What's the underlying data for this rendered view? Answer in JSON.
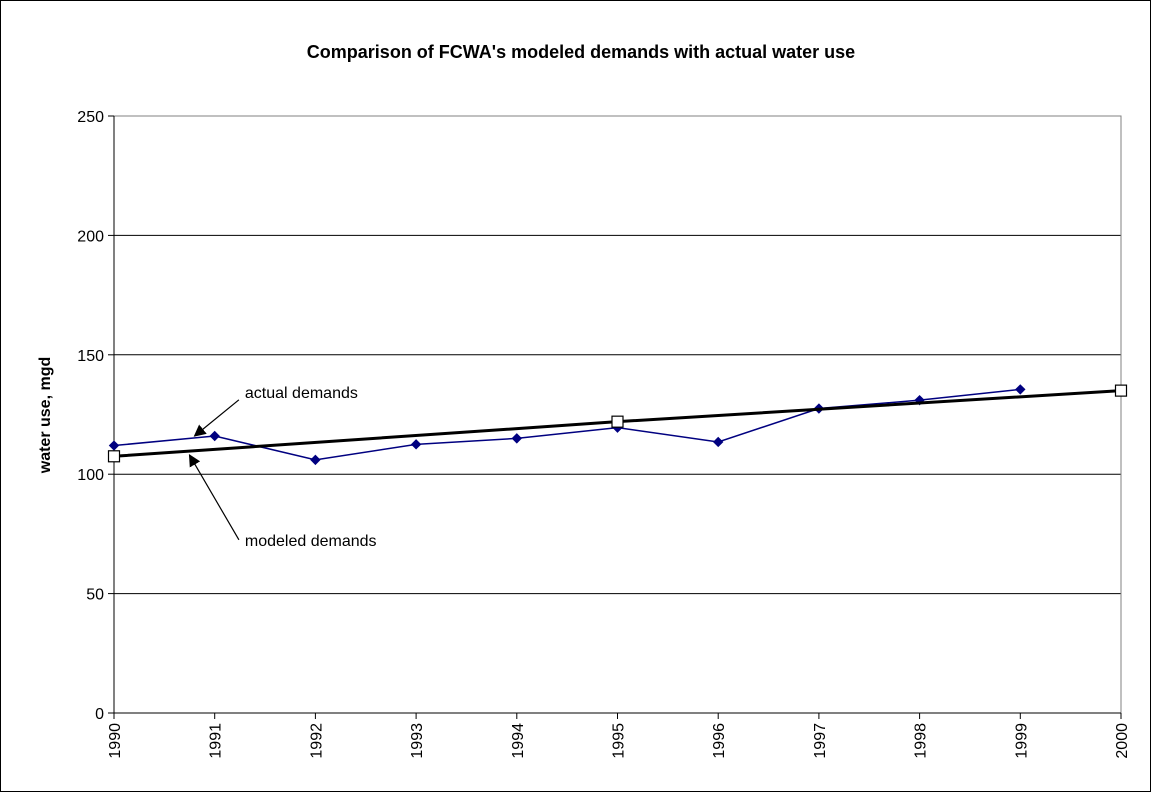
{
  "chart_data": {
    "type": "line",
    "title": "Comparison of FCWA's modeled demands with actual water use",
    "xlabel": "",
    "ylabel": "water use, mgd",
    "ylim": [
      0,
      250
    ],
    "yticks": [
      0,
      50,
      100,
      150,
      200,
      250
    ],
    "xlim": [
      1990,
      2000
    ],
    "xticks": [
      1990,
      1991,
      1992,
      1993,
      1994,
      1995,
      1996,
      1997,
      1998,
      1999,
      2000
    ],
    "grid": "horizontal",
    "legend": "none",
    "series": [
      {
        "key": "actual",
        "color": "#000080",
        "marker": "diamond",
        "x": [
          1990,
          1991,
          1992,
          1993,
          1994,
          1995,
          1996,
          1997,
          1998,
          1999
        ],
        "values": [
          112,
          116,
          106,
          112.5,
          115,
          119.5,
          113.5,
          127.5,
          131,
          135.5
        ]
      },
      {
        "key": "modeled",
        "color": "#000000",
        "marker": "square",
        "x": [
          1990,
          1995,
          2000
        ],
        "values": [
          107.5,
          122,
          135
        ]
      }
    ],
    "annotations": [
      {
        "text": "actual demands",
        "points_to": "actual",
        "arrow_x": 1990.8,
        "arrow_y": 116,
        "text_x": 1991.3,
        "text_y": 132
      },
      {
        "text": "modeled demands",
        "points_to": "modeled",
        "arrow_x": 1990.75,
        "arrow_y": 108,
        "text_x": 1991.3,
        "text_y": 70
      }
    ]
  }
}
